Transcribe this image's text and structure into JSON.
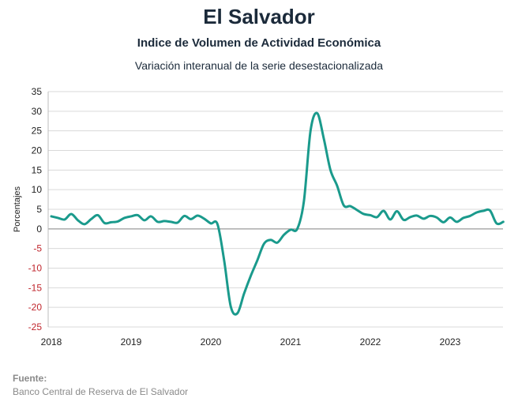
{
  "header": {
    "title": "El Salvador",
    "subtitle": "Indice de Volumen de  Actividad Económica",
    "subtitle2": "Variación interanual de la serie desestacionalizada"
  },
  "source": {
    "label": "Fuente:",
    "text": "Banco Central de Reserva de El Salvador"
  },
  "colors": {
    "line": "#1a9a8c",
    "negative_tick": "#c0262d",
    "grid": "#d9d9d9"
  },
  "chart_data": {
    "type": "line",
    "title": "Indice de Volumen de  Actividad Económica",
    "subtitle": "Variación interanual de la serie desestacionalizada",
    "xlabel": "",
    "ylabel": "Porcentajes",
    "ylim": [
      -25,
      35
    ],
    "yticks": [
      35,
      30,
      25,
      20,
      15,
      10,
      5,
      0,
      -5,
      -10,
      -15,
      -20,
      -25
    ],
    "xticks": [
      "2018",
      "2019",
      "2020",
      "2021",
      "2022",
      "2023"
    ],
    "grid": true,
    "frequency": "monthly",
    "x_start": "2018-01",
    "series": [
      {
        "values": [
          3.2,
          2.8,
          2.4,
          3.8,
          2.2,
          1.2,
          2.5,
          3.5,
          1.5,
          1.7,
          1.9,
          2.8,
          3.2,
          3.5,
          2.2,
          3.2,
          1.8,
          2.0,
          1.8,
          1.6,
          3.3,
          2.5,
          3.4,
          2.6,
          1.4,
          1.2,
          -8.0,
          -19.8,
          -21.5,
          -16.5,
          -12.0,
          -8.0,
          -3.8,
          -2.8,
          -3.5,
          -1.5,
          -0.2,
          0.0,
          7.0,
          25.0,
          29.5,
          23.0,
          15.0,
          11.0,
          6.0,
          5.8,
          4.8,
          3.8,
          3.5,
          3.0,
          4.6,
          2.4,
          4.5,
          2.3,
          3.0,
          3.4,
          2.6,
          3.3,
          2.9,
          1.7,
          2.9,
          1.8,
          2.8,
          3.3,
          4.2,
          4.6,
          4.7,
          1.4,
          1.8
        ]
      }
    ]
  }
}
